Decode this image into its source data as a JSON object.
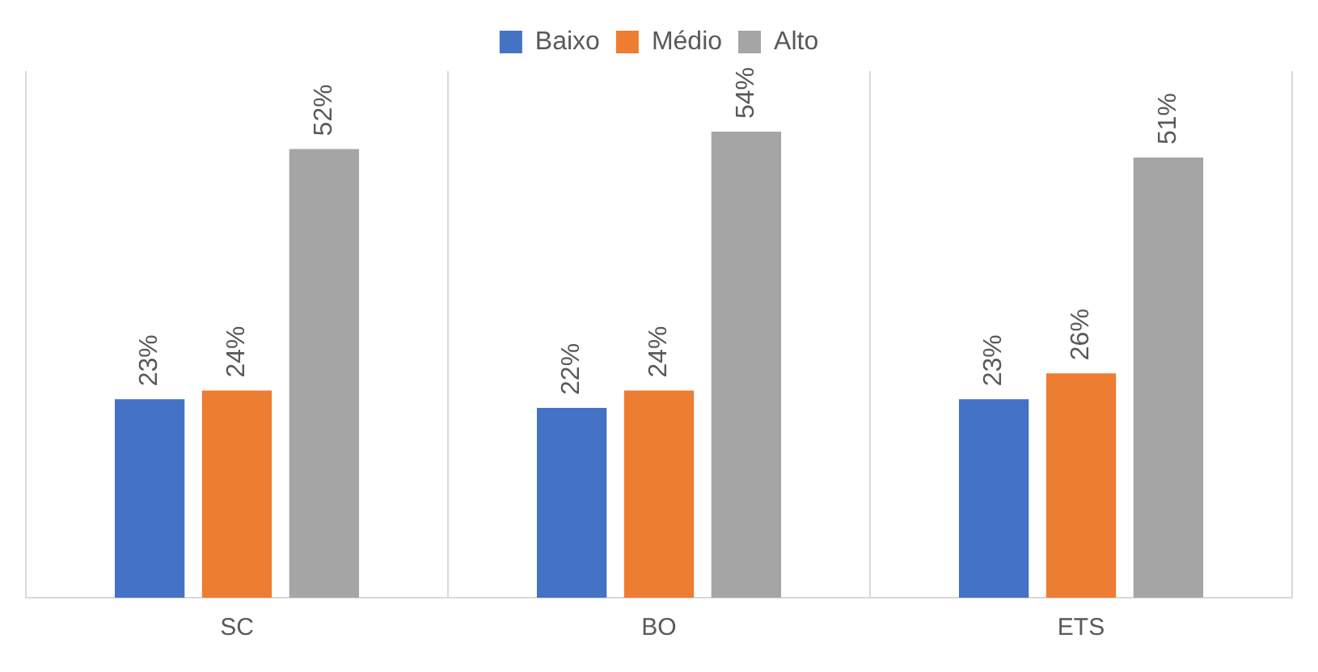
{
  "chart_data": {
    "type": "bar",
    "categories": [
      "SC",
      "BO",
      "ETS"
    ],
    "series": [
      {
        "name": "Baixo",
        "color": "#4472c4",
        "values": [
          23,
          22,
          23
        ],
        "value_labels": [
          "23%",
          "22%",
          "23%"
        ]
      },
      {
        "name": "Médio",
        "color": "#ed7d31",
        "values": [
          24,
          24,
          26
        ],
        "value_labels": [
          "24%",
          "24%",
          "26%"
        ]
      },
      {
        "name": "Alto",
        "color": "#a5a5a5",
        "values": [
          52,
          54,
          51
        ],
        "value_labels": [
          "52%",
          "54%",
          "51%"
        ]
      }
    ],
    "grid": "x",
    "legend": "top"
  }
}
